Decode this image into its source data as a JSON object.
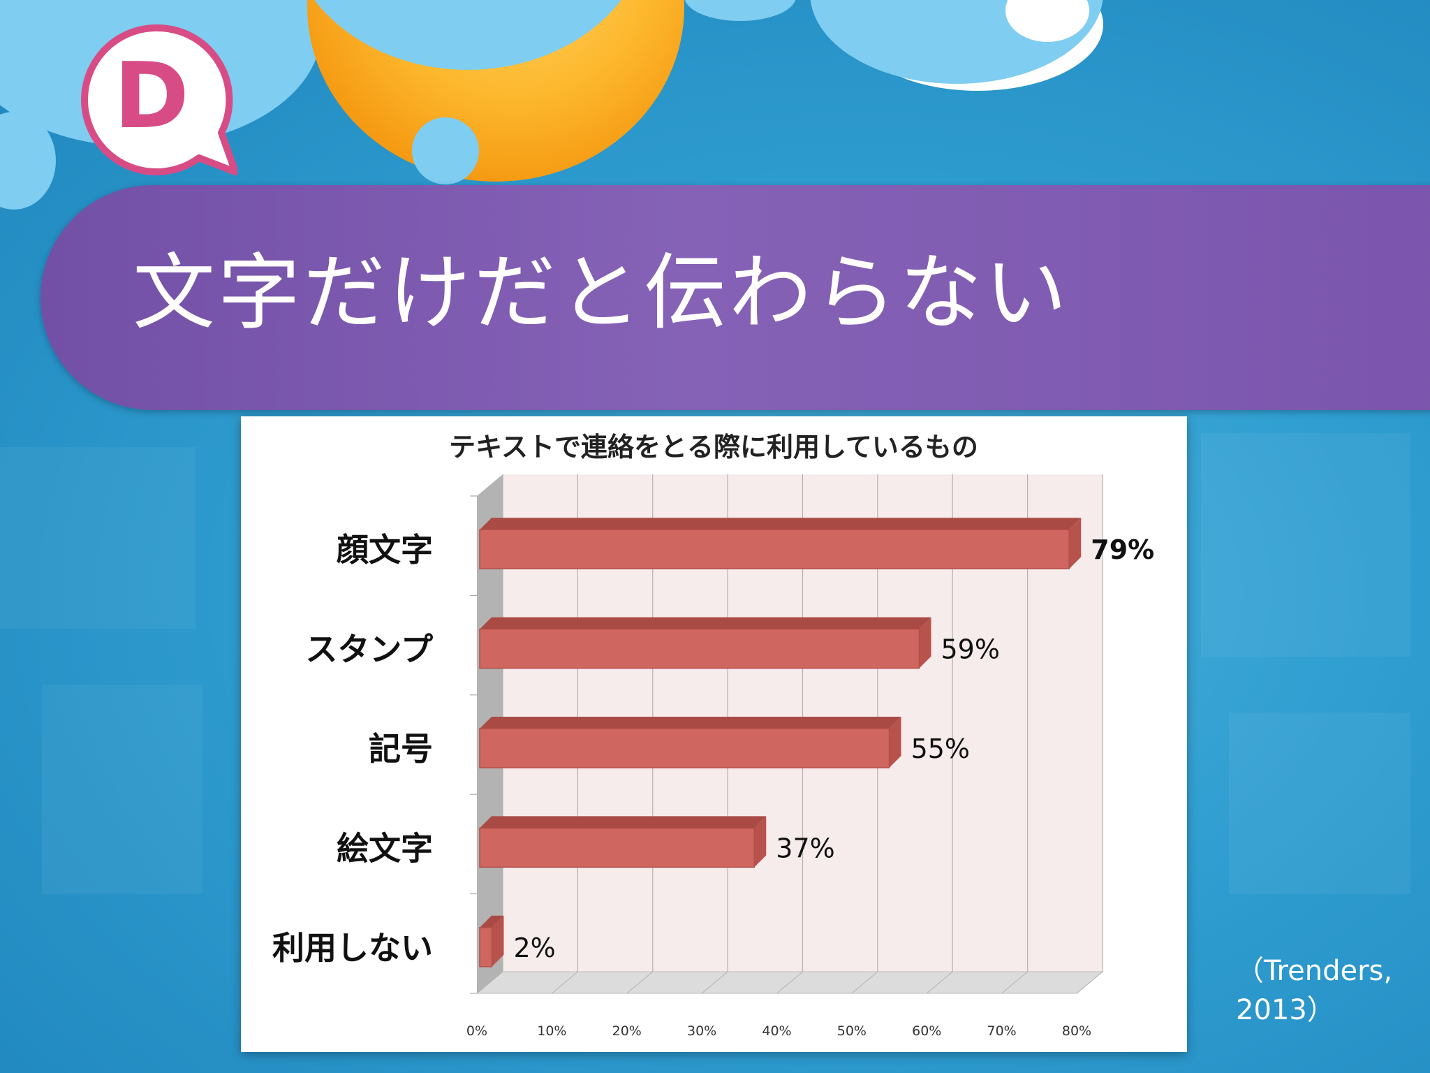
{
  "slide": {
    "badge_letter": "D",
    "title": "文字だけだと伝わらない",
    "citation_line1": "（Trenders,",
    "citation_line2": "2013）",
    "colors": {
      "background": "#2f9dd0",
      "banner": "#8060b2",
      "badge_ring": "#d84c86",
      "bar": "#cf665f"
    }
  },
  "chart_data": {
    "type": "bar",
    "orientation": "horizontal",
    "title": "テキストで連絡をとる際に利用しているもの",
    "categories": [
      "顔文字",
      "スタンプ",
      "記号",
      "絵文字",
      "利用しない"
    ],
    "values": [
      79,
      59,
      55,
      37,
      2
    ],
    "value_labels": [
      "79%",
      "59%",
      "55%",
      "37%",
      "2%"
    ],
    "xlim": [
      0,
      80
    ],
    "x_ticks": [
      "0%",
      "10%",
      "20%",
      "30%",
      "40%",
      "50%",
      "60%",
      "70%",
      "80%"
    ],
    "grid": true,
    "legend": "none"
  }
}
